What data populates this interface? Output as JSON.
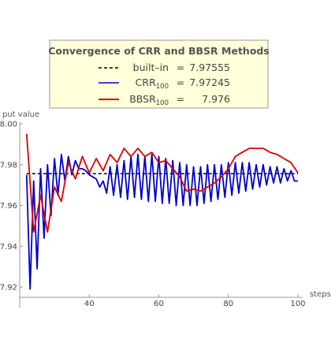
{
  "chart_data": {
    "type": "line",
    "title": "Convergence of CRR and BBSR Methods",
    "xlabel": "steps",
    "ylabel": "put value",
    "xlim": [
      20,
      100
    ],
    "ylim": [
      7.915,
      8.0
    ],
    "xticks": [
      40,
      60,
      80,
      100
    ],
    "yticks": [
      7.92,
      7.94,
      7.96,
      7.98,
      8.0
    ],
    "ytick_labels": [
      "7.92",
      "7.94",
      "7.96",
      "7.98",
      "8.00"
    ],
    "grid": false,
    "legend_position": "top",
    "legend": {
      "title": "Convergence of CRR and BBSR Methods",
      "entries": [
        {
          "label": "built–in",
          "sub": "",
          "eq": "=",
          "value": "7.97555",
          "color": "#000000",
          "dash": "4,3"
        },
        {
          "label": "CRR",
          "sub": "100",
          "eq": "=",
          "value": "7.97245",
          "color": "#0000cc",
          "dash": ""
        },
        {
          "label": "BBSR",
          "sub": "100",
          "eq": "=",
          "value": "7.976",
          "color": "#dd0000",
          "dash": ""
        }
      ]
    },
    "series": [
      {
        "name": "built–in",
        "color": "#000000",
        "dash": "4,3",
        "x": [
          22,
          100
        ],
        "y": [
          7.97555,
          7.97555
        ]
      },
      {
        "name": "CRR",
        "color": "#0000cc",
        "x": [
          22,
          23,
          24,
          25,
          26,
          27,
          28,
          29,
          30,
          31,
          32,
          33,
          34,
          35,
          36,
          37,
          38,
          39,
          40,
          41,
          42,
          43,
          44,
          45,
          46,
          47,
          48,
          49,
          50,
          51,
          52,
          53,
          54,
          55,
          56,
          57,
          58,
          59,
          60,
          61,
          62,
          63,
          64,
          65,
          66,
          67,
          68,
          69,
          70,
          71,
          72,
          73,
          74,
          75,
          76,
          77,
          78,
          79,
          80,
          81,
          82,
          83,
          84,
          85,
          86,
          87,
          88,
          89,
          90,
          91,
          92,
          93,
          94,
          95,
          96,
          97,
          98,
          99,
          100
        ],
        "y": [
          7.975,
          7.919,
          7.972,
          7.929,
          7.978,
          7.944,
          7.98,
          7.955,
          7.983,
          7.965,
          7.985,
          7.972,
          7.984,
          7.975,
          7.982,
          7.978,
          7.978,
          7.977,
          7.975,
          7.974,
          7.973,
          7.969,
          7.972,
          7.966,
          7.979,
          7.965,
          7.98,
          7.964,
          7.982,
          7.963,
          7.984,
          7.964,
          7.985,
          7.963,
          7.984,
          7.962,
          7.985,
          7.962,
          7.984,
          7.961,
          7.983,
          7.961,
          7.982,
          7.96,
          7.981,
          7.96,
          7.98,
          7.96,
          7.979,
          7.96,
          7.979,
          7.961,
          7.98,
          7.962,
          7.98,
          7.963,
          7.98,
          7.964,
          7.981,
          7.965,
          7.981,
          7.966,
          7.981,
          7.967,
          7.981,
          7.968,
          7.98,
          7.969,
          7.98,
          7.97,
          7.979,
          7.971,
          7.979,
          7.971,
          7.978,
          7.972,
          7.977,
          7.972,
          7.972
        ]
      },
      {
        "name": "BBSR",
        "color": "#dd0000",
        "x": [
          22,
          24,
          26,
          28,
          30,
          32,
          34,
          36,
          38,
          40,
          42,
          44,
          46,
          48,
          50,
          52,
          54,
          56,
          58,
          60,
          62,
          64,
          66,
          68,
          70,
          72,
          74,
          76,
          78,
          80,
          82,
          84,
          86,
          88,
          90,
          92,
          94,
          96,
          98,
          100
        ],
        "y": [
          7.995,
          7.947,
          7.965,
          7.947,
          7.969,
          7.962,
          7.981,
          7.973,
          7.984,
          7.976,
          7.983,
          7.977,
          7.985,
          7.981,
          7.988,
          7.984,
          7.988,
          7.984,
          7.986,
          7.981,
          7.982,
          7.978,
          7.974,
          7.967,
          7.968,
          7.967,
          7.969,
          7.971,
          7.974,
          7.978,
          7.984,
          7.986,
          7.988,
          7.988,
          7.988,
          7.986,
          7.985,
          7.983,
          7.981,
          7.976
        ]
      }
    ]
  }
}
